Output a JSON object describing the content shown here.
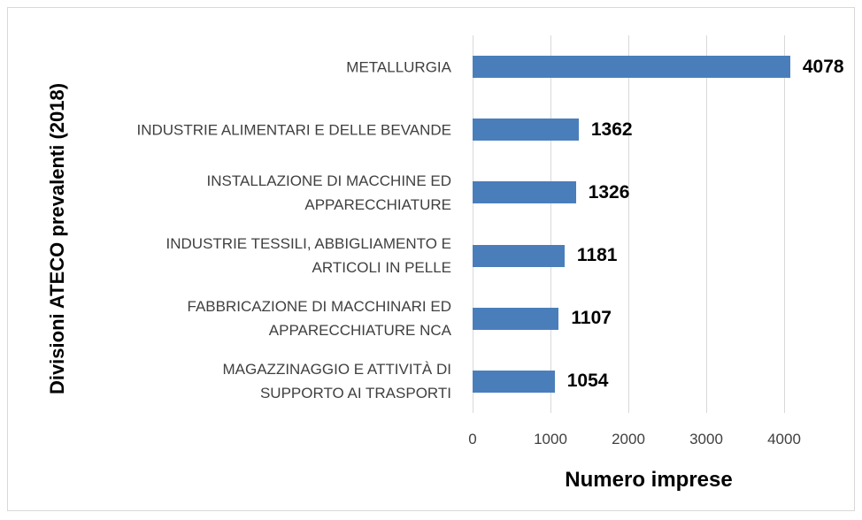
{
  "chart_data": {
    "type": "bar",
    "orientation": "horizontal",
    "categories": [
      "METALLURGIA",
      "INDUSTRIE ALIMENTARI E DELLE BEVANDE",
      "INSTALLAZIONE DI MACCHINE ED\nAPPARECCHIATURE",
      "INDUSTRIE TESSILI, ABBIGLIAMENTO E\nARTICOLI IN PELLE",
      "FABBRICAZIONE DI MACCHINARI ED\nAPPARECCHIATURE NCA",
      "MAGAZZINAGGIO E ATTIVITÀ DI\nSUPPORTO AI TRASPORTI"
    ],
    "values": [
      4078,
      1362,
      1326,
      1181,
      1107,
      1054
    ],
    "color": "#4a7ebb",
    "xlim": [
      0,
      4000
    ],
    "xticks": [
      0,
      1000,
      2000,
      3000,
      4000
    ],
    "grid": true,
    "xlabel": "Numero imprese",
    "ylabel": "Divisioni ATECO prevalenti (2018)"
  }
}
